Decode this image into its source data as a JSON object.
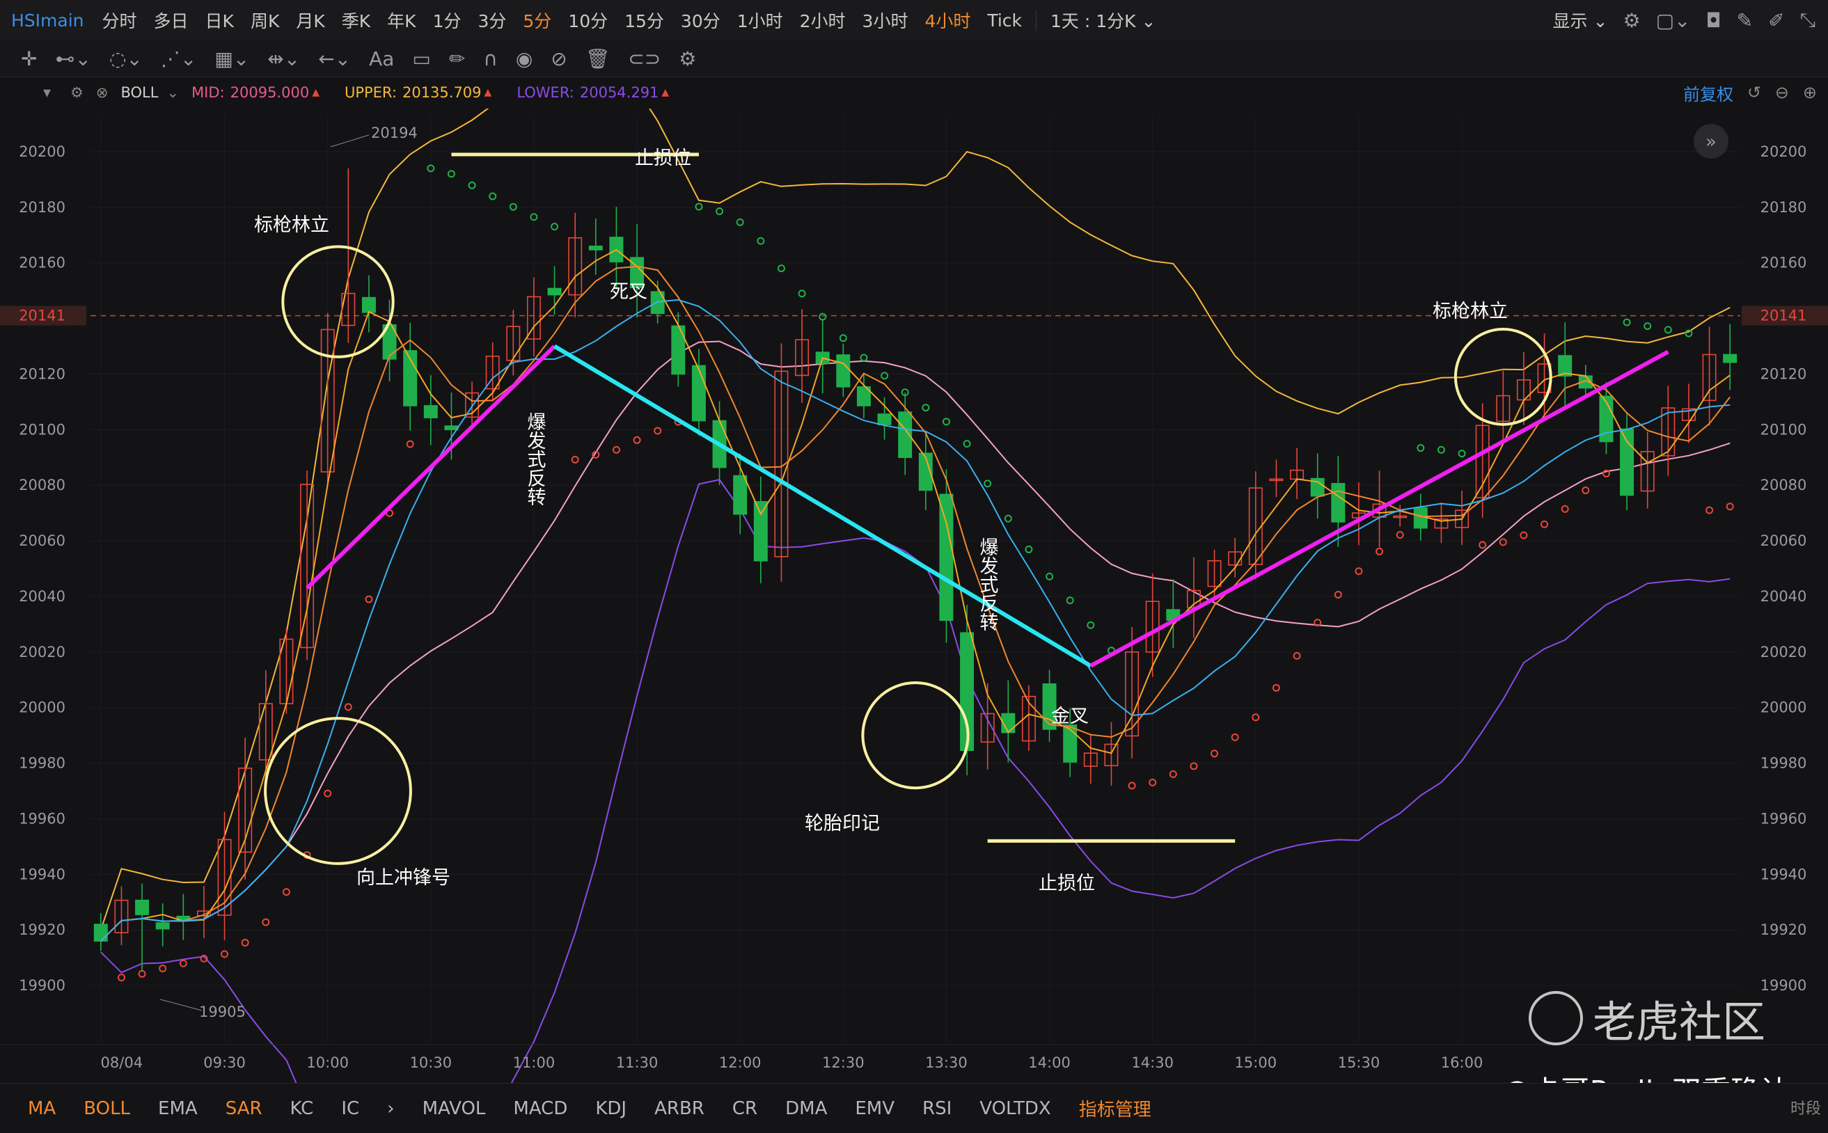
{
  "header": {
    "symbol": "HSImain",
    "periods": [
      "分时",
      "多日",
      "日K",
      "周K",
      "月K",
      "季K",
      "年K",
      "1分",
      "3分",
      "5分",
      "10分",
      "15分",
      "30分",
      "1小时",
      "2小时",
      "3小时",
      "4小时",
      "Tick"
    ],
    "active_periods": [
      "5分",
      "4小时"
    ],
    "range_select": "1天 : 1分K",
    "display_label": "显示",
    "right_icons": [
      "settings-icon",
      "layout-icon",
      "camera-icon",
      "edit-icon",
      "draw-icon",
      "shrink-icon"
    ]
  },
  "toolbar": {
    "tools": [
      "crosshair-icon",
      "line-tool-icon",
      "circle-tool-icon",
      "pattern-tool-icon",
      "measure-tool-icon",
      "range-tool-icon",
      "arrow-tool-icon",
      "text-tool-icon",
      "comment-tool-icon",
      "pencil-icon",
      "magnet-icon",
      "eye-icon",
      "hide-icon",
      "trash-icon",
      "link-icon",
      "gear-icon"
    ],
    "text_tool_label": "Aa"
  },
  "indicator": {
    "name": "BOLL",
    "mid_label": "MID:",
    "mid_value": "20095.000",
    "upper_label": "UPPER:",
    "upper_value": "20135.709",
    "lower_label": "LOWER:",
    "lower_value": "20054.291",
    "adjust_label": "前复权",
    "colors": {
      "mid": "#e85a8a",
      "upper": "#f5b83a",
      "lower": "#8a4be8"
    }
  },
  "chart_data": {
    "type": "candlestick",
    "ylim": [
      19890,
      20208
    ],
    "y_ticks": [
      "20200",
      "20180",
      "20160",
      "20141",
      "20120",
      "20100",
      "20080",
      "20060",
      "20040",
      "20020",
      "20000",
      "19980",
      "19960",
      "19940",
      "19920",
      "19900"
    ],
    "current_price": "20141",
    "x_ticks": [
      "08/04",
      "09:30",
      "10:00",
      "10:30",
      "11:00",
      "11:30",
      "12:00",
      "12:30",
      "13:30",
      "14:00",
      "14:30",
      "15:00",
      "15:30",
      "16:00"
    ],
    "high_marker": "20194",
    "low_marker": "19905",
    "annotations": [
      "标枪林立",
      "向上冲锋号",
      "止损位",
      "死叉",
      "爆发式反转",
      "轮胎印记",
      "止损位",
      "金叉",
      "爆发式反转",
      "标枪林立"
    ],
    "colors": {
      "up": "#e8463a",
      "down": "#1fb04c",
      "ma_fast": "#f5a623",
      "ma_mid": "#f2872e",
      "ma_slow": "#3ab0f0",
      "boll_upper": "#f5b83a",
      "boll_mid": "#f5a0c8",
      "boll_lower": "#8a4be8",
      "sar_up": "#e8463a",
      "sar_down": "#1fb04c",
      "trend_up": "#f020f0",
      "trend_down": "#28e6f0",
      "stop_line": "#f8f0a0",
      "circle": "#f8f0a0"
    }
  },
  "bottom_tabs": {
    "active_tabs": [
      "MA",
      "BOLL",
      "SAR"
    ],
    "overlay": [
      "MA",
      "BOLL",
      "EMA",
      "SAR",
      "KC",
      "IC"
    ],
    "sub": [
      "MAVOL",
      "MACD",
      "KDJ",
      "ARBR",
      "CR",
      "DMA",
      "EMV",
      "RSI",
      "VOLTDX"
    ],
    "manage": "指标管理"
  },
  "watermark": {
    "text": "老虎社区"
  },
  "signature": "@卡哥Purliu双重确认",
  "time_segment": "时段"
}
